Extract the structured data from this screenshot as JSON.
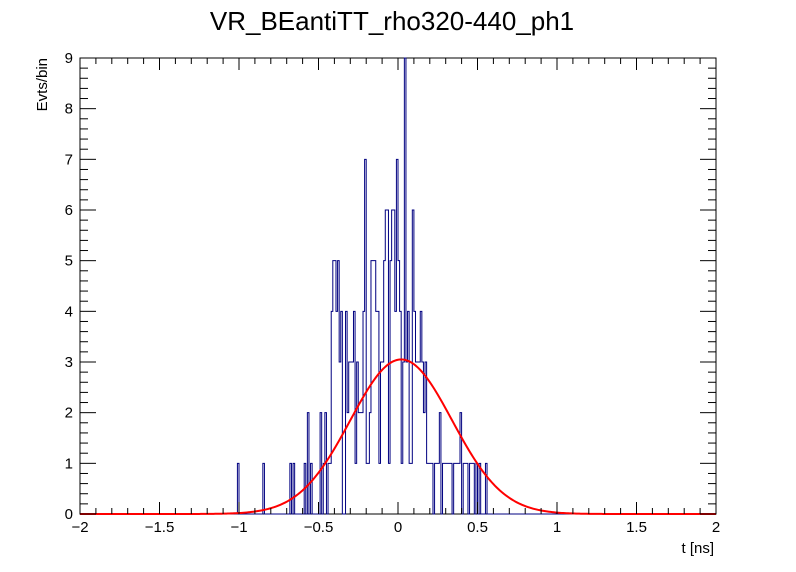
{
  "chart_data": {
    "type": "histogram",
    "title": "VR_BEantiTT_rho320-440_ph1",
    "xlabel": "t [ns]",
    "ylabel": "Evts/bin",
    "xlim": [
      -2,
      2
    ],
    "ylim": [
      0,
      9
    ],
    "x_ticks": [
      -2,
      -1.5,
      -1,
      -0.5,
      0,
      0.5,
      1,
      1.5,
      2
    ],
    "x_tick_labels": [
      "−2",
      "−1.5",
      "−1",
      "−0.5",
      "0",
      "0.5",
      "1",
      "1.5",
      "2"
    ],
    "y_ticks": [
      0,
      1,
      2,
      3,
      4,
      5,
      6,
      7,
      8,
      9
    ],
    "y_tick_labels": [
      "0",
      "1",
      "2",
      "3",
      "4",
      "5",
      "6",
      "7",
      "8",
      "9"
    ],
    "grid": false,
    "legend": "none",
    "bin_width": 0.01,
    "series": [
      {
        "type": "histogram",
        "color": "#000080",
        "counts_from_minus2": [
          0,
          0,
          0,
          0,
          0,
          0,
          0,
          0,
          0,
          0,
          0,
          0,
          0,
          0,
          0,
          0,
          0,
          0,
          0,
          0,
          0,
          0,
          0,
          0,
          0,
          0,
          0,
          0,
          0,
          0,
          0,
          0,
          0,
          0,
          0,
          0,
          0,
          0,
          0,
          0,
          0,
          0,
          0,
          0,
          0,
          0,
          0,
          0,
          0,
          0,
          0,
          0,
          0,
          0,
          0,
          0,
          0,
          0,
          0,
          0,
          0,
          0,
          0,
          0,
          0,
          0,
          0,
          0,
          0,
          0,
          0,
          0,
          0,
          0,
          0,
          0,
          0,
          0,
          0,
          0,
          0,
          0,
          0,
          0,
          0,
          0,
          0,
          0,
          0,
          0,
          0,
          0,
          0,
          0,
          0,
          0,
          0,
          0,
          0,
          1,
          0,
          0,
          0,
          0,
          0,
          0,
          0,
          0,
          0,
          0,
          0,
          0,
          0,
          0,
          0,
          1,
          0,
          0,
          0,
          0,
          0,
          0,
          0,
          0,
          0,
          0,
          0,
          0,
          0,
          0,
          0,
          0,
          1,
          0,
          1,
          0,
          0,
          0,
          0,
          0,
          0,
          1,
          0,
          2,
          0,
          1,
          0,
          0,
          0,
          0,
          0,
          2,
          0,
          1,
          2,
          0,
          1,
          1,
          4,
          5,
          5,
          4,
          5,
          3,
          4,
          0,
          0,
          4,
          2,
          3,
          3,
          3,
          4,
          1,
          3,
          2,
          2,
          2,
          4,
          7,
          1,
          1,
          2,
          5,
          5,
          5,
          4,
          4,
          1,
          3,
          3,
          5,
          6,
          6,
          1,
          5,
          6,
          6,
          4,
          7,
          5,
          4,
          1,
          3,
          9,
          3,
          4,
          1,
          1,
          6,
          4,
          3,
          3,
          3,
          4,
          3,
          2,
          3,
          1,
          1,
          1,
          1,
          0,
          1,
          1,
          1,
          2,
          0,
          1,
          1,
          1,
          1,
          1,
          1,
          0,
          1,
          1,
          1,
          1,
          2,
          0,
          1,
          1,
          1,
          0,
          1,
          1,
          1,
          0,
          1,
          0,
          1,
          0,
          0,
          0,
          1,
          0,
          0,
          0,
          0,
          0,
          0,
          0,
          0,
          0,
          0,
          0,
          0,
          0,
          0,
          0,
          0,
          0,
          0,
          0,
          0,
          0,
          0,
          0,
          0,
          0,
          0,
          0,
          0,
          0,
          0,
          0,
          0,
          0,
          0,
          0,
          0,
          0,
          0,
          0,
          0,
          0,
          0,
          0,
          0,
          0,
          0,
          0,
          0,
          0,
          0,
          0,
          0,
          0,
          0,
          0,
          0,
          0,
          0,
          0,
          0,
          0,
          0,
          0,
          0,
          0,
          0,
          0,
          0,
          0,
          0,
          0,
          0,
          0,
          0,
          0,
          0,
          0,
          0,
          0,
          0,
          0,
          0,
          0,
          0,
          0,
          0,
          0,
          0,
          0,
          0,
          0,
          0,
          0,
          0,
          0,
          0,
          0,
          0,
          0,
          0,
          0,
          0,
          0,
          0,
          0,
          0,
          0,
          0,
          0,
          0,
          0,
          0,
          0,
          0,
          0,
          0,
          0,
          0,
          0,
          0,
          0,
          0,
          0,
          0,
          0
        ]
      },
      {
        "type": "line",
        "color": "#ff0000",
        "model": "gaussian",
        "amplitude": 3.05,
        "mean": 0.02,
        "sigma": 0.32
      }
    ]
  }
}
